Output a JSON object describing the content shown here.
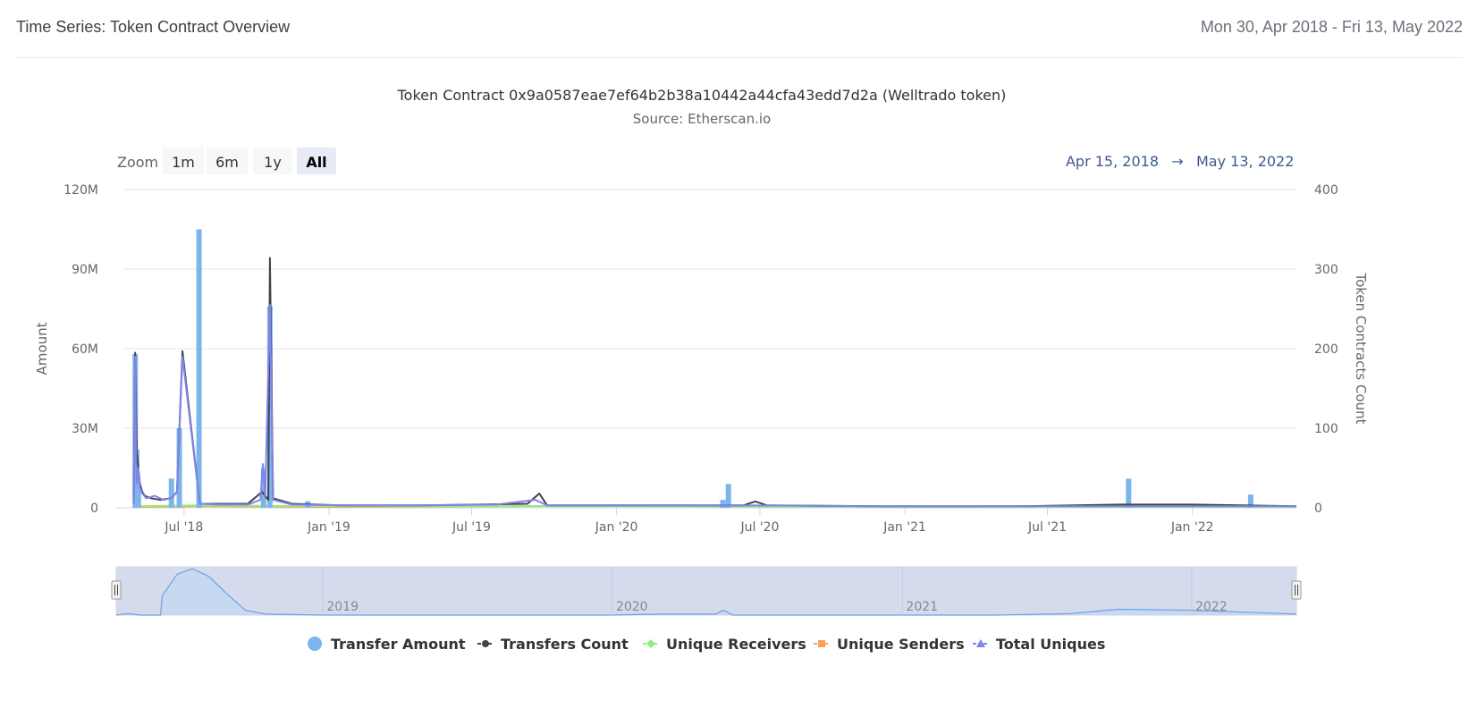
{
  "header": {
    "title": "Time Series: Token Contract Overview",
    "date_range": "Mon 30, Apr 2018 - Fri 13, May 2022"
  },
  "chart_data": {
    "type": "bar",
    "title": "Token Contract 0x9a0587eae7ef64b2b38a10442a44cfa43edd7d2a (Welltrado token)",
    "subtitle": "Source: Etherscan.io",
    "zoom": {
      "label": "Zoom",
      "buttons": [
        "1m",
        "6m",
        "1y",
        "All"
      ],
      "selected": "All"
    },
    "range_display": {
      "from": "Apr 15, 2018",
      "arrow": "→",
      "to": "May 13, 2022"
    },
    "x_range": [
      "2018-04-15",
      "2022-05-13"
    ],
    "x_ticks": [
      {
        "date": "2018-07-01",
        "label": "Jul '18"
      },
      {
        "date": "2019-01-01",
        "label": "Jan '19"
      },
      {
        "date": "2019-07-01",
        "label": "Jul '19"
      },
      {
        "date": "2020-01-01",
        "label": "Jan '20"
      },
      {
        "date": "2020-07-01",
        "label": "Jul '20"
      },
      {
        "date": "2021-01-01",
        "label": "Jan '21"
      },
      {
        "date": "2021-07-01",
        "label": "Jul '21"
      },
      {
        "date": "2022-01-01",
        "label": "Jan '22"
      }
    ],
    "y_left": {
      "label": "Amount",
      "min": 0,
      "max": 120000000,
      "ticks": [
        0,
        30000000,
        60000000,
        90000000,
        120000000
      ],
      "tick_labels": [
        "0",
        "30M",
        "60M",
        "90M",
        "120M"
      ]
    },
    "y_right": {
      "label": "Token Contracts Count",
      "min": 0,
      "max": 400,
      "ticks": [
        0,
        100,
        200,
        300,
        400
      ],
      "tick_labels": [
        "0",
        "100",
        "200",
        "300",
        "400"
      ]
    },
    "grid": true,
    "legend_position": "bottom",
    "series": [
      {
        "name": "Transfer Amount",
        "kind": "bar",
        "axis": "left",
        "color": "#7cb5ec",
        "points": [
          [
            "2018-04-30",
            58000000
          ],
          [
            "2018-05-02",
            22000000
          ],
          [
            "2018-05-04",
            9000000
          ],
          [
            "2018-06-15",
            11000000
          ],
          [
            "2018-06-25",
            30000000
          ],
          [
            "2018-07-20",
            105000000
          ],
          [
            "2018-10-10",
            15000000
          ],
          [
            "2018-10-18",
            76000000
          ],
          [
            "2018-12-05",
            2500000
          ],
          [
            "2020-05-15",
            3000000
          ],
          [
            "2020-05-22",
            9000000
          ],
          [
            "2021-10-12",
            11000000
          ],
          [
            "2022-03-16",
            5000000
          ]
        ]
      },
      {
        "name": "Transfers Count",
        "kind": "line",
        "axis": "right",
        "color": "#434348",
        "points": [
          [
            "2018-04-28",
            5
          ],
          [
            "2018-04-30",
            195
          ],
          [
            "2018-05-02",
            70
          ],
          [
            "2018-05-04",
            50
          ],
          [
            "2018-05-06",
            30
          ],
          [
            "2018-05-09",
            20
          ],
          [
            "2018-05-12",
            15
          ],
          [
            "2018-05-20",
            12
          ],
          [
            "2018-06-01",
            10
          ],
          [
            "2018-06-15",
            12
          ],
          [
            "2018-06-22",
            20
          ],
          [
            "2018-06-29",
            197
          ],
          [
            "2018-07-21",
            5
          ],
          [
            "2018-08-15",
            5
          ],
          [
            "2018-09-20",
            5
          ],
          [
            "2018-10-08",
            20
          ],
          [
            "2018-10-16",
            10
          ],
          [
            "2018-10-18",
            314
          ],
          [
            "2018-10-22",
            12
          ],
          [
            "2018-11-15",
            5
          ],
          [
            "2019-01-15",
            3
          ],
          [
            "2019-05-01",
            3
          ],
          [
            "2019-09-10",
            5
          ],
          [
            "2019-09-25",
            18
          ],
          [
            "2019-10-05",
            3
          ],
          [
            "2020-01-10",
            3
          ],
          [
            "2020-06-10",
            3
          ],
          [
            "2020-06-25",
            8
          ],
          [
            "2020-07-10",
            3
          ],
          [
            "2020-12-01",
            2
          ],
          [
            "2021-06-01",
            2
          ],
          [
            "2021-10-01",
            4
          ],
          [
            "2022-01-01",
            4
          ],
          [
            "2022-05-13",
            2
          ]
        ]
      },
      {
        "name": "Unique Receivers",
        "kind": "line",
        "axis": "right",
        "color": "#90ed7d",
        "points": [
          [
            "2018-04-28",
            2
          ],
          [
            "2018-07-20",
            3
          ],
          [
            "2019-01-01",
            2
          ],
          [
            "2020-01-01",
            2
          ],
          [
            "2021-01-01",
            1
          ],
          [
            "2022-05-13",
            1
          ]
        ]
      },
      {
        "name": "Unique Senders",
        "kind": "line",
        "axis": "right",
        "color": "#f7a35c",
        "points": [
          [
            "2018-04-28",
            1
          ],
          [
            "2018-07-20",
            2
          ],
          [
            "2019-01-01",
            1
          ],
          [
            "2019-09-01",
            2
          ],
          [
            "2020-01-01",
            3
          ],
          [
            "2020-06-01",
            2
          ],
          [
            "2021-01-01",
            1
          ],
          [
            "2021-10-01",
            3
          ],
          [
            "2022-05-13",
            2
          ]
        ]
      },
      {
        "name": "Total Uniques",
        "kind": "line",
        "axis": "right",
        "color": "#8085e9",
        "points": [
          [
            "2018-04-28",
            5
          ],
          [
            "2018-04-30",
            190
          ],
          [
            "2018-05-01",
            60
          ],
          [
            "2018-05-02",
            30
          ],
          [
            "2018-05-04",
            50
          ],
          [
            "2018-05-06",
            25
          ],
          [
            "2018-05-09",
            18
          ],
          [
            "2018-05-14",
            12
          ],
          [
            "2018-05-25",
            15
          ],
          [
            "2018-06-05",
            10
          ],
          [
            "2018-06-15",
            12
          ],
          [
            "2018-06-22",
            20
          ],
          [
            "2018-06-29",
            190
          ],
          [
            "2018-07-21",
            5
          ],
          [
            "2018-08-15",
            4
          ],
          [
            "2018-09-20",
            4
          ],
          [
            "2018-10-06",
            10
          ],
          [
            "2018-10-09",
            55
          ],
          [
            "2018-10-12",
            15
          ],
          [
            "2018-10-18",
            255
          ],
          [
            "2018-10-22",
            10
          ],
          [
            "2018-11-15",
            4
          ],
          [
            "2019-01-15",
            3
          ],
          [
            "2019-05-01",
            3
          ],
          [
            "2019-08-01",
            4
          ],
          [
            "2019-09-20",
            10
          ],
          [
            "2019-10-05",
            3
          ],
          [
            "2020-01-10",
            3
          ],
          [
            "2020-06-01",
            3
          ],
          [
            "2020-12-01",
            2
          ],
          [
            "2021-06-01",
            2
          ],
          [
            "2021-10-01",
            2
          ],
          [
            "2022-01-01",
            2
          ],
          [
            "2022-05-13",
            2
          ]
        ]
      }
    ],
    "navigator": {
      "year_labels": [
        "2019",
        "2020",
        "2021",
        "2022"
      ],
      "year_dates": [
        "2019-01-01",
        "2020-01-01",
        "2021-01-01",
        "2022-01-01"
      ],
      "points": [
        [
          "2018-04-15",
          0
        ],
        [
          "2018-05-01",
          3
        ],
        [
          "2018-05-15",
          0
        ],
        [
          "2018-06-10",
          0
        ],
        [
          "2018-06-12",
          40
        ],
        [
          "2018-07-01",
          85
        ],
        [
          "2018-07-20",
          96
        ],
        [
          "2018-08-10",
          80
        ],
        [
          "2018-09-01",
          45
        ],
        [
          "2018-09-25",
          10
        ],
        [
          "2018-10-20",
          2
        ],
        [
          "2018-12-31",
          0
        ],
        [
          "2019-12-31",
          0
        ],
        [
          "2020-03-01",
          2
        ],
        [
          "2020-05-10",
          2
        ],
        [
          "2020-05-20",
          10
        ],
        [
          "2020-06-01",
          0
        ],
        [
          "2021-05-01",
          0
        ],
        [
          "2021-08-01",
          3
        ],
        [
          "2021-10-01",
          12
        ],
        [
          "2022-01-01",
          10
        ],
        [
          "2022-05-13",
          2
        ]
      ]
    }
  }
}
